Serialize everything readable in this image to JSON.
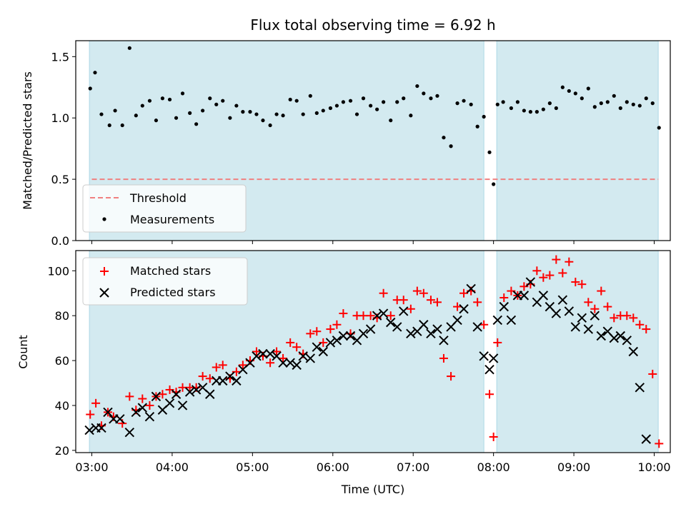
{
  "figure_title": "Flux total observing time = 6.92 h",
  "colors": {
    "band": "#d3eaf0",
    "threshold": "#f08080",
    "measurement": "#000000",
    "matched": "#ff0000",
    "predicted": "#000000"
  },
  "chart_data": [
    {
      "type": "scatter",
      "ylabel": "Matched/Predicted stars",
      "xlabel": "",
      "xlim": [
        2.8,
        10.2
      ],
      "ylim": [
        0,
        1.63
      ],
      "y_ticks": [
        "0.0",
        "0.5",
        "1.0",
        "1.5"
      ],
      "y_tick_values": [
        0,
        0.5,
        1.0,
        1.5
      ],
      "x_ticks": [
        "03:00",
        "04:00",
        "05:00",
        "06:00",
        "07:00",
        "08:00",
        "09:00",
        "10:00"
      ],
      "x_tick_values": [
        3,
        4,
        5,
        6,
        7,
        8,
        9,
        10
      ],
      "observing_bands": [
        [
          2.97,
          7.88
        ],
        [
          8.04,
          10.05
        ]
      ],
      "threshold": 0.5,
      "legend": {
        "placement": "lower-left",
        "entries": [
          "Threshold",
          "Measurements"
        ]
      },
      "series": [
        {
          "name": "Measurements",
          "points": [
            [
              2.98,
              1.24
            ],
            [
              3.04,
              1.37
            ],
            [
              3.12,
              1.03
            ],
            [
              3.22,
              0.94
            ],
            [
              3.29,
              1.06
            ],
            [
              3.38,
              0.94
            ],
            [
              3.47,
              1.57
            ],
            [
              3.55,
              1.02
            ],
            [
              3.63,
              1.1
            ],
            [
              3.72,
              1.14
            ],
            [
              3.8,
              0.98
            ],
            [
              3.88,
              1.16
            ],
            [
              3.97,
              1.15
            ],
            [
              4.05,
              1.0
            ],
            [
              4.13,
              1.2
            ],
            [
              4.22,
              1.04
            ],
            [
              4.3,
              0.95
            ],
            [
              4.38,
              1.06
            ],
            [
              4.47,
              1.16
            ],
            [
              4.55,
              1.11
            ],
            [
              4.63,
              1.14
            ],
            [
              4.72,
              1.0
            ],
            [
              4.8,
              1.1
            ],
            [
              4.88,
              1.05
            ],
            [
              4.97,
              1.05
            ],
            [
              5.05,
              1.03
            ],
            [
              5.13,
              0.98
            ],
            [
              5.22,
              0.94
            ],
            [
              5.3,
              1.03
            ],
            [
              5.38,
              1.02
            ],
            [
              5.47,
              1.15
            ],
            [
              5.55,
              1.14
            ],
            [
              5.63,
              1.03
            ],
            [
              5.72,
              1.18
            ],
            [
              5.8,
              1.04
            ],
            [
              5.88,
              1.06
            ],
            [
              5.97,
              1.08
            ],
            [
              6.05,
              1.1
            ],
            [
              6.13,
              1.13
            ],
            [
              6.22,
              1.14
            ],
            [
              6.3,
              1.03
            ],
            [
              6.38,
              1.16
            ],
            [
              6.47,
              1.1
            ],
            [
              6.55,
              1.07
            ],
            [
              6.63,
              1.13
            ],
            [
              6.72,
              0.98
            ],
            [
              6.8,
              1.13
            ],
            [
              6.88,
              1.16
            ],
            [
              6.97,
              1.02
            ],
            [
              7.05,
              1.26
            ],
            [
              7.13,
              1.2
            ],
            [
              7.22,
              1.16
            ],
            [
              7.3,
              1.18
            ],
            [
              7.38,
              0.84
            ],
            [
              7.47,
              0.77
            ],
            [
              7.55,
              1.12
            ],
            [
              7.63,
              1.14
            ],
            [
              7.72,
              1.11
            ],
            [
              7.8,
              0.93
            ],
            [
              7.88,
              1.01
            ],
            [
              7.95,
              0.72
            ],
            [
              8.0,
              0.46
            ],
            [
              8.05,
              1.11
            ],
            [
              8.12,
              1.13
            ],
            [
              8.22,
              1.08
            ],
            [
              8.3,
              1.13
            ],
            [
              8.38,
              1.06
            ],
            [
              8.46,
              1.05
            ],
            [
              8.54,
              1.05
            ],
            [
              8.62,
              1.07
            ],
            [
              8.7,
              1.12
            ],
            [
              8.78,
              1.08
            ],
            [
              8.86,
              1.25
            ],
            [
              8.94,
              1.22
            ],
            [
              9.02,
              1.2
            ],
            [
              9.1,
              1.16
            ],
            [
              9.18,
              1.24
            ],
            [
              9.26,
              1.09
            ],
            [
              9.34,
              1.12
            ],
            [
              9.42,
              1.13
            ],
            [
              9.5,
              1.18
            ],
            [
              9.58,
              1.08
            ],
            [
              9.66,
              1.13
            ],
            [
              9.74,
              1.11
            ],
            [
              9.82,
              1.1
            ],
            [
              9.9,
              1.16
            ],
            [
              9.98,
              1.12
            ],
            [
              10.06,
              0.92
            ]
          ]
        }
      ]
    },
    {
      "type": "scatter",
      "ylabel": "Count",
      "xlabel": "Time (UTC)",
      "xlim": [
        2.8,
        10.2
      ],
      "ylim": [
        19,
        109
      ],
      "y_ticks": [
        "20",
        "40",
        "60",
        "80",
        "100"
      ],
      "y_tick_values": [
        20,
        40,
        60,
        80,
        100
      ],
      "x_ticks": [
        "03:00",
        "04:00",
        "05:00",
        "06:00",
        "07:00",
        "08:00",
        "09:00",
        "10:00"
      ],
      "x_tick_values": [
        3,
        4,
        5,
        6,
        7,
        8,
        9,
        10
      ],
      "observing_bands": [
        [
          2.97,
          7.88
        ],
        [
          8.04,
          10.05
        ]
      ],
      "legend": {
        "placement": "upper-left",
        "entries": [
          "Matched stars",
          "Predicted stars"
        ]
      },
      "series": [
        {
          "name": "Matched stars",
          "marker": "plus",
          "points": [
            [
              2.98,
              36
            ],
            [
              3.05,
              41
            ],
            [
              3.12,
              31
            ],
            [
              3.2,
              37
            ],
            [
              3.27,
              35
            ],
            [
              3.38,
              32
            ],
            [
              3.47,
              44
            ],
            [
              3.55,
              38
            ],
            [
              3.63,
              43
            ],
            [
              3.72,
              40
            ],
            [
              3.8,
              44
            ],
            [
              3.88,
              45
            ],
            [
              3.97,
              47
            ],
            [
              4.05,
              46
            ],
            [
              4.13,
              48
            ],
            [
              4.22,
              48
            ],
            [
              4.3,
              48
            ],
            [
              4.38,
              53
            ],
            [
              4.47,
              52
            ],
            [
              4.55,
              57
            ],
            [
              4.63,
              58
            ],
            [
              4.72,
              52
            ],
            [
              4.8,
              55
            ],
            [
              4.88,
              58
            ],
            [
              4.97,
              60
            ],
            [
              5.05,
              64
            ],
            [
              5.13,
              62
            ],
            [
              5.22,
              59
            ],
            [
              5.3,
              64
            ],
            [
              5.38,
              61
            ],
            [
              5.47,
              68
            ],
            [
              5.55,
              66
            ],
            [
              5.63,
              63
            ],
            [
              5.72,
              72
            ],
            [
              5.8,
              73
            ],
            [
              5.88,
              68
            ],
            [
              5.97,
              74
            ],
            [
              6.05,
              76
            ],
            [
              6.13,
              81
            ],
            [
              6.22,
              72
            ],
            [
              6.3,
              80
            ],
            [
              6.38,
              80
            ],
            [
              6.47,
              80
            ],
            [
              6.55,
              79
            ],
            [
              6.63,
              90
            ],
            [
              6.72,
              80
            ],
            [
              6.8,
              87
            ],
            [
              6.88,
              87
            ],
            [
              6.97,
              83
            ],
            [
              7.05,
              91
            ],
            [
              7.13,
              90
            ],
            [
              7.22,
              87
            ],
            [
              7.3,
              86
            ],
            [
              7.38,
              61
            ],
            [
              7.47,
              53
            ],
            [
              7.55,
              84
            ],
            [
              7.63,
              90
            ],
            [
              7.72,
              91
            ],
            [
              7.8,
              86
            ],
            [
              7.88,
              76
            ],
            [
              7.95,
              45
            ],
            [
              8.0,
              26
            ],
            [
              8.05,
              68
            ],
            [
              8.13,
              88
            ],
            [
              8.22,
              91
            ],
            [
              8.3,
              89
            ],
            [
              8.38,
              93
            ],
            [
              8.46,
              94
            ],
            [
              8.54,
              100
            ],
            [
              8.62,
              97
            ],
            [
              8.7,
              98
            ],
            [
              8.78,
              105
            ],
            [
              8.86,
              99
            ],
            [
              8.94,
              104
            ],
            [
              9.02,
              95
            ],
            [
              9.1,
              94
            ],
            [
              9.18,
              86
            ],
            [
              9.26,
              83
            ],
            [
              9.34,
              91
            ],
            [
              9.42,
              84
            ],
            [
              9.5,
              79
            ],
            [
              9.58,
              80
            ],
            [
              9.66,
              80
            ],
            [
              9.74,
              79
            ],
            [
              9.82,
              76
            ],
            [
              9.9,
              74
            ],
            [
              9.98,
              54
            ],
            [
              10.06,
              23
            ]
          ]
        },
        {
          "name": "Predicted stars",
          "marker": "x",
          "points": [
            [
              2.97,
              29
            ],
            [
              3.05,
              30
            ],
            [
              3.12,
              30
            ],
            [
              3.2,
              37
            ],
            [
              3.27,
              34
            ],
            [
              3.35,
              34
            ],
            [
              3.47,
              28
            ],
            [
              3.55,
              37
            ],
            [
              3.63,
              39
            ],
            [
              3.72,
              35
            ],
            [
              3.8,
              44
            ],
            [
              3.88,
              38
            ],
            [
              3.97,
              41
            ],
            [
              4.05,
              45
            ],
            [
              4.13,
              40
            ],
            [
              4.22,
              46
            ],
            [
              4.3,
              47
            ],
            [
              4.38,
              48
            ],
            [
              4.47,
              45
            ],
            [
              4.55,
              51
            ],
            [
              4.63,
              51
            ],
            [
              4.72,
              53
            ],
            [
              4.8,
              51
            ],
            [
              4.88,
              56
            ],
            [
              4.97,
              59
            ],
            [
              5.05,
              62
            ],
            [
              5.13,
              63
            ],
            [
              5.22,
              63
            ],
            [
              5.3,
              62
            ],
            [
              5.38,
              59
            ],
            [
              5.47,
              59
            ],
            [
              5.55,
              58
            ],
            [
              5.63,
              62
            ],
            [
              5.72,
              61
            ],
            [
              5.8,
              66
            ],
            [
              5.88,
              64
            ],
            [
              5.97,
              68
            ],
            [
              6.05,
              69
            ],
            [
              6.13,
              71
            ],
            [
              6.22,
              71
            ],
            [
              6.3,
              69
            ],
            [
              6.38,
              72
            ],
            [
              6.47,
              74
            ],
            [
              6.55,
              80
            ],
            [
              6.63,
              81
            ],
            [
              6.72,
              77
            ],
            [
              6.8,
              75
            ],
            [
              6.88,
              82
            ],
            [
              6.97,
              72
            ],
            [
              7.05,
              73
            ],
            [
              7.13,
              76
            ],
            [
              7.22,
              72
            ],
            [
              7.3,
              74
            ],
            [
              7.38,
              69
            ],
            [
              7.47,
              75
            ],
            [
              7.55,
              78
            ],
            [
              7.63,
              83
            ],
            [
              7.72,
              92
            ],
            [
              7.8,
              75
            ],
            [
              7.88,
              62
            ],
            [
              7.95,
              56
            ],
            [
              8.0,
              61
            ],
            [
              8.05,
              78
            ],
            [
              8.13,
              84
            ],
            [
              8.22,
              78
            ],
            [
              8.3,
              89
            ],
            [
              8.38,
              89
            ],
            [
              8.46,
              95
            ],
            [
              8.54,
              86
            ],
            [
              8.62,
              89
            ],
            [
              8.7,
              84
            ],
            [
              8.78,
              81
            ],
            [
              8.86,
              87
            ],
            [
              8.94,
              82
            ],
            [
              9.02,
              75
            ],
            [
              9.1,
              79
            ],
            [
              9.18,
              74
            ],
            [
              9.26,
              80
            ],
            [
              9.34,
              71
            ],
            [
              9.42,
              73
            ],
            [
              9.5,
              70
            ],
            [
              9.58,
              71
            ],
            [
              9.66,
              69
            ],
            [
              9.74,
              64
            ],
            [
              9.82,
              48
            ],
            [
              9.9,
              25
            ]
          ]
        }
      ]
    }
  ]
}
